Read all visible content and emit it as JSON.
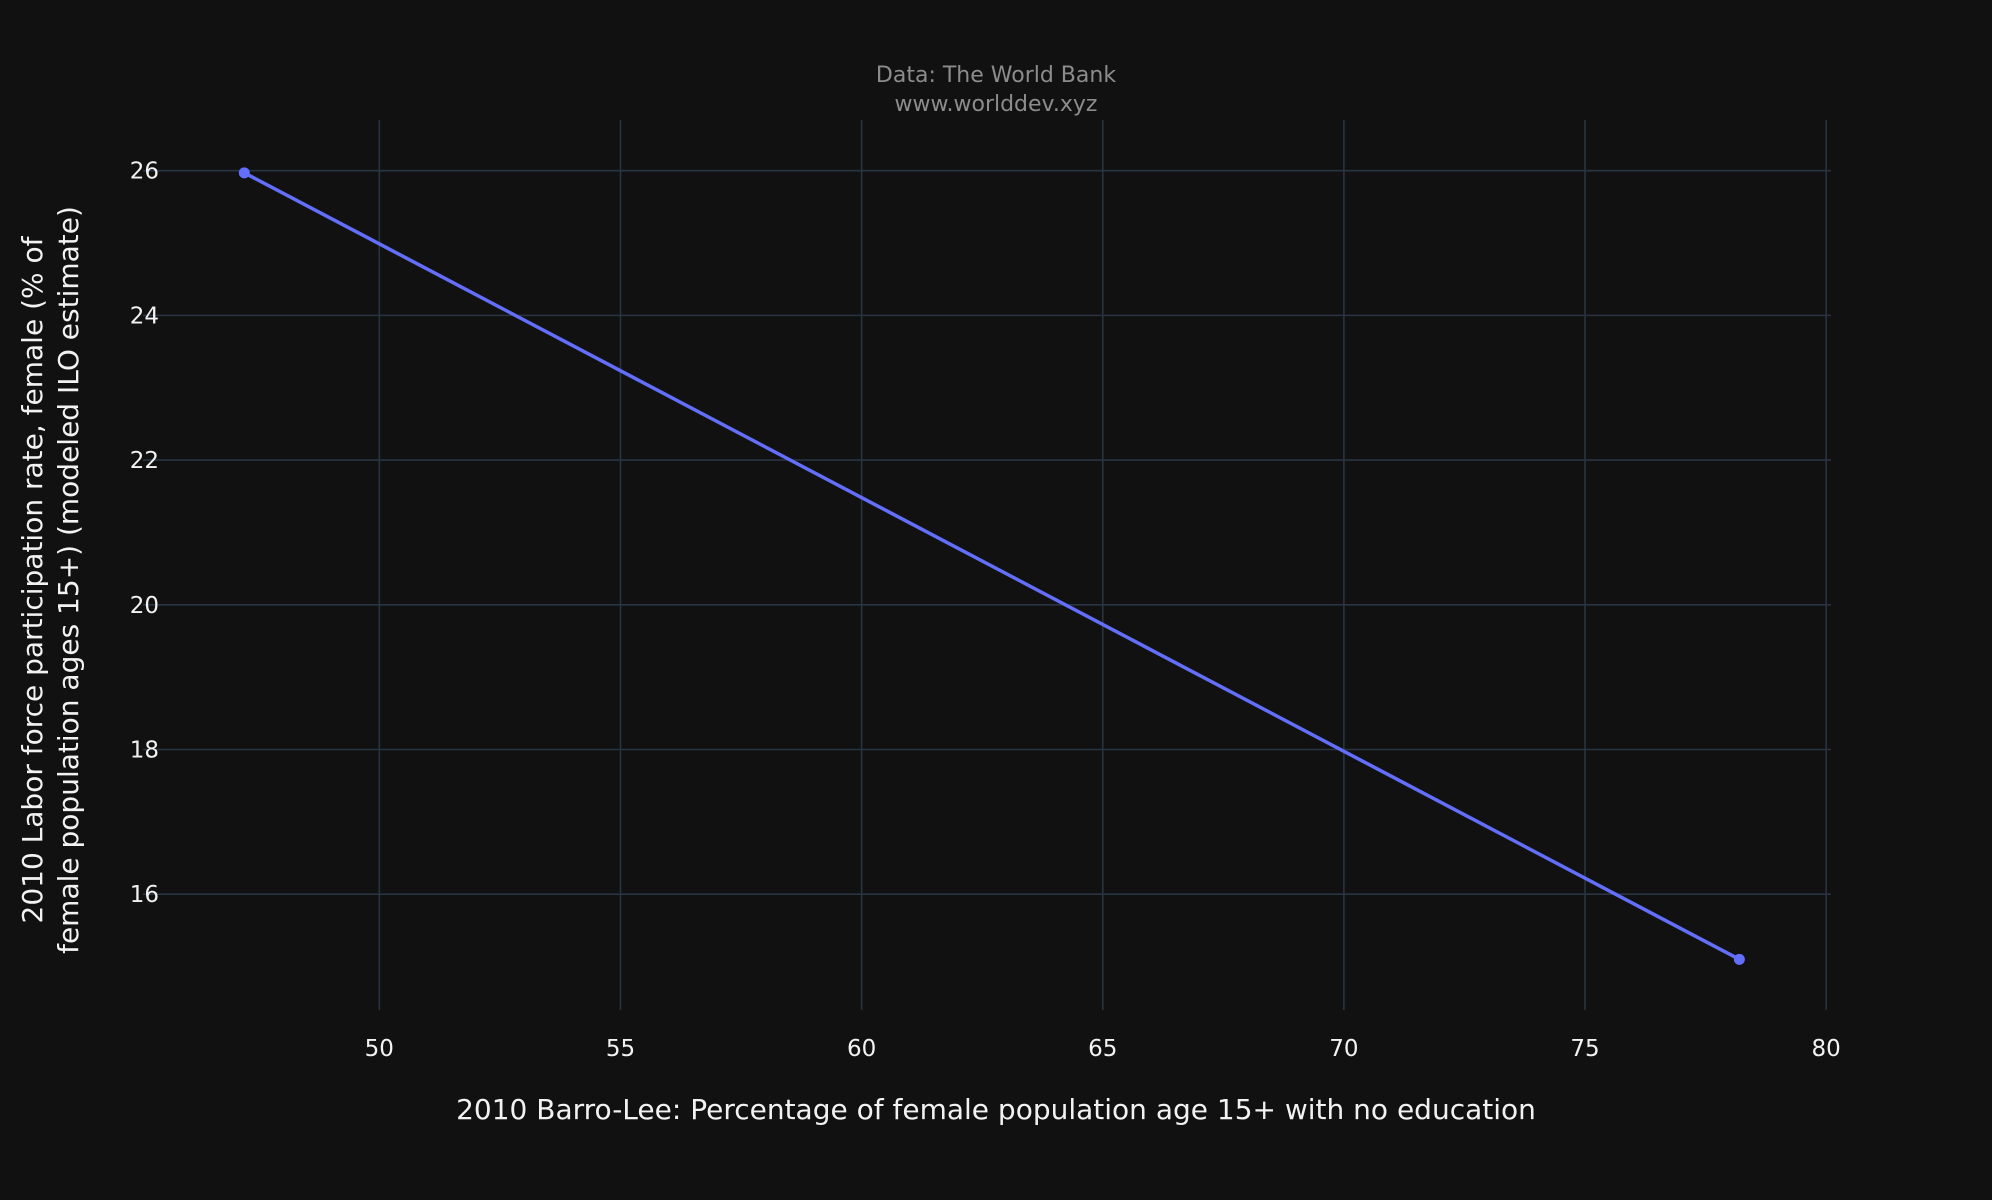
{
  "chart_data": {
    "type": "line",
    "title_lines": [
      "Data: The World Bank",
      "www.worlddev.xyz"
    ],
    "xlabel": "2010 Barro-Lee: Percentage of female population age 15+ with no education",
    "ylabel_lines": [
      "2010 Labor force participation rate, female (% of",
      "female population ages 15+) (modeled ILO estimate)"
    ],
    "xlim": [
      45.1,
      80.1
    ],
    "ylim": [
      14.4,
      26.7
    ],
    "xticks": [
      50,
      55,
      60,
      65,
      70,
      75,
      80
    ],
    "yticks": [
      16,
      18,
      20,
      22,
      24,
      26
    ],
    "grid": true,
    "series": [
      {
        "x": [
          47.2,
          78.2
        ],
        "y": [
          25.97,
          15.1
        ],
        "color": "#636efa"
      }
    ]
  },
  "colors": {
    "background": "#111111",
    "grid": "#283442",
    "line": "#636efa"
  }
}
